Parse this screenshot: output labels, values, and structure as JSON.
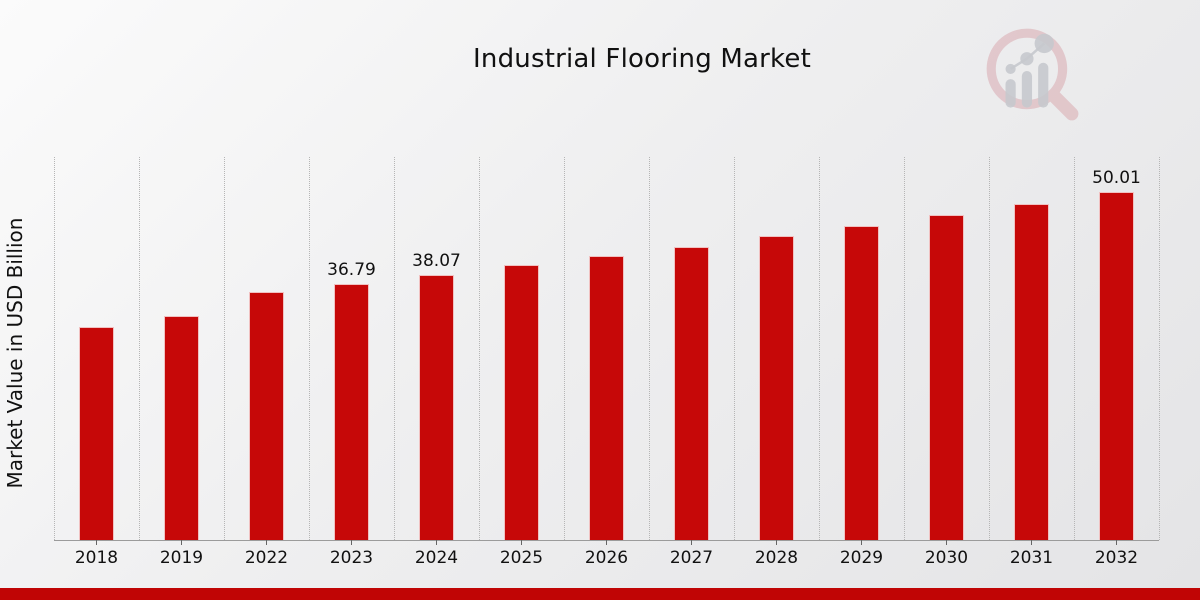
{
  "title": "Industrial Flooring Market",
  "ylabel": "Market Value in USD Billion",
  "chart_data": {
    "type": "bar",
    "title": "Industrial Flooring Market",
    "xlabel": "",
    "ylabel": "Market Value in USD Billion",
    "categories": [
      "2018",
      "2019",
      "2022",
      "2023",
      "2024",
      "2025",
      "2026",
      "2027",
      "2028",
      "2029",
      "2030",
      "2031",
      "2032"
    ],
    "values": [
      30.6,
      32.2,
      35.6,
      36.79,
      38.07,
      39.5,
      40.8,
      42.1,
      43.7,
      45.1,
      46.7,
      48.3,
      50.01
    ],
    "data_labels": [
      "",
      "",
      "",
      "36.79",
      "38.07",
      "",
      "",
      "",
      "",
      "",
      "",
      "",
      "50.01"
    ],
    "ylim": [
      0,
      55
    ],
    "bar_color": "#c60808",
    "grid": "vertical-dotted",
    "legend": "none"
  },
  "branding": {
    "logo_name": "market-research-future-magnifier-logo",
    "accent_bar_color": "#c00505"
  }
}
